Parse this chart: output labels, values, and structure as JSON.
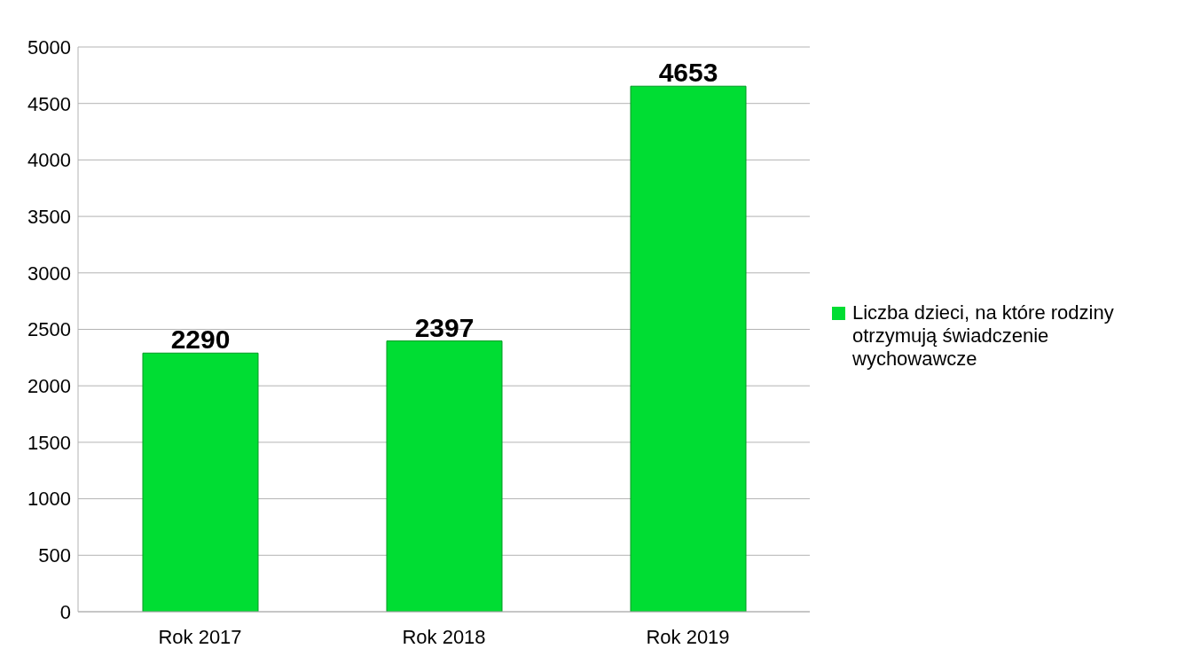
{
  "chart_data": {
    "type": "bar",
    "categories": [
      "Rok 2017",
      "Rok 2018",
      "Rok 2019"
    ],
    "series": [
      {
        "name": "Liczba dzieci, na które rodziny otrzymują świadczenie wychowawcze",
        "color": "#00dd33",
        "values": [
          2290,
          2397,
          4653
        ]
      }
    ],
    "ylim": [
      0,
      5000
    ],
    "yticks": [
      0,
      500,
      1000,
      1500,
      2000,
      2500,
      3000,
      3500,
      4000,
      4500,
      5000
    ],
    "grid": "y",
    "legend": "right",
    "data_labels": true
  }
}
